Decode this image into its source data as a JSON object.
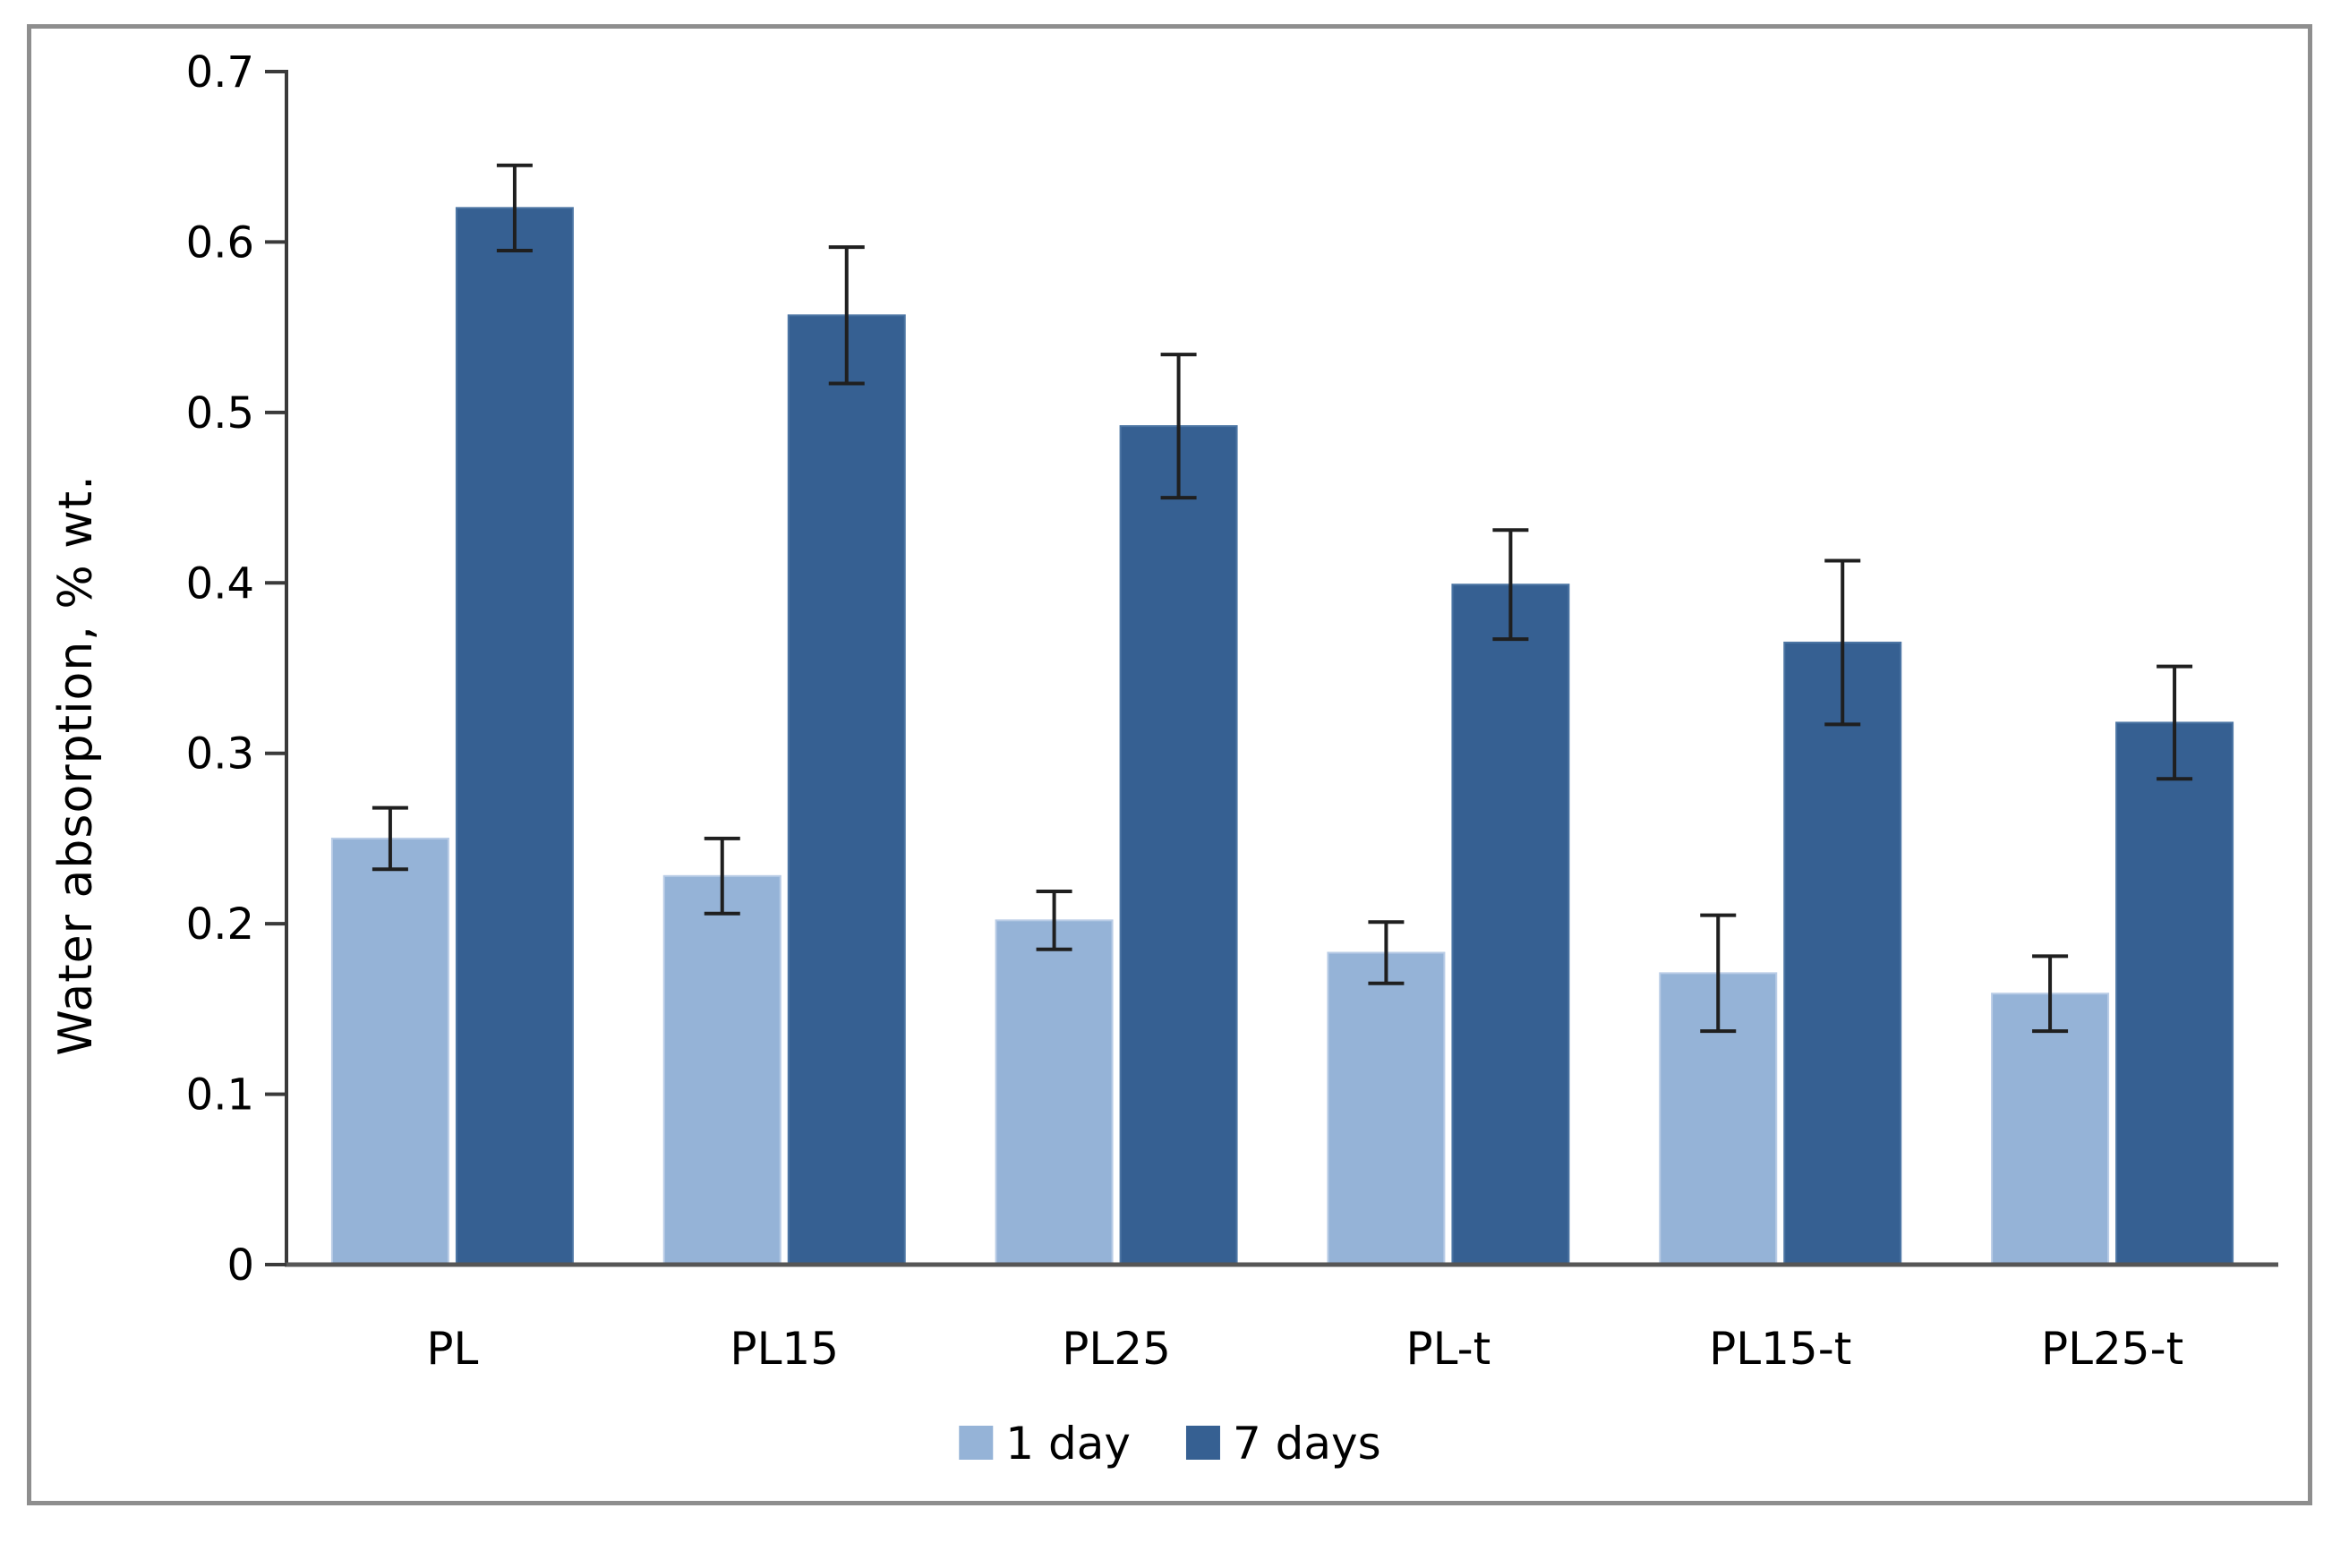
{
  "figure": {
    "border_color": "#8e8e8e",
    "background_color": "#ffffff"
  },
  "chart_data": {
    "type": "bar",
    "title": "",
    "xlabel": "",
    "ylabel": "Water absorption, % wt.",
    "categories": [
      "PL",
      "PL15",
      "PL25",
      "PL-t",
      "PL15-t",
      "PL25-t"
    ],
    "series": [
      {
        "name": "1 day",
        "color": "#95b3d7",
        "edge_color": "#b9cce6",
        "values": [
          0.25,
          0.228,
          0.202,
          0.183,
          0.171,
          0.159
        ],
        "errors": [
          0.018,
          0.022,
          0.017,
          0.018,
          0.034,
          0.022
        ]
      },
      {
        "name": "7 days",
        "color": "#366092",
        "edge_color": "#4d76a4",
        "values": [
          0.62,
          0.557,
          0.492,
          0.399,
          0.365,
          0.318
        ],
        "errors": [
          0.025,
          0.04,
          0.042,
          0.032,
          0.048,
          0.033
        ]
      }
    ],
    "ylim": [
      0,
      0.7
    ],
    "ytick_step": 0.1,
    "ytick_labels": [
      "0",
      "0.1",
      "0.2",
      "0.3",
      "0.4",
      "0.5",
      "0.6",
      "0.7"
    ],
    "grid": false,
    "legend_position": "bottom-center",
    "axis_color": "#3a3a3a",
    "baseline_color": "#565656",
    "error_bar_color": "#1f1f1f",
    "text_color": "#000000"
  }
}
